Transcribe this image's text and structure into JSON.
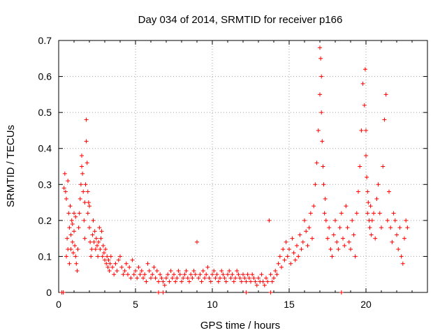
{
  "chart_data": {
    "type": "scatter",
    "title": "Day 034 of 2014, SRMTID for receiver p166",
    "xlabel": "GPS time / hours",
    "ylabel": "SRMTID / TECUs",
    "xlim": [
      0,
      24
    ],
    "ylim": [
      0,
      0.7
    ],
    "xticks": [
      0,
      5,
      10,
      15,
      20
    ],
    "yticks": [
      0,
      0.1,
      0.2,
      0.3,
      0.4,
      0.5,
      0.6,
      0.7
    ],
    "grid": true,
    "marker": "+",
    "series": [
      {
        "name": "SRMTID",
        "color": "#ff0000",
        "x": [
          0.2,
          0.3,
          0.35,
          0.4,
          0.45,
          0.5,
          0.5,
          0.55,
          0.6,
          0.6,
          0.65,
          0.7,
          0.7,
          0.75,
          0.8,
          0.8,
          0.85,
          0.9,
          0.9,
          0.95,
          1.0,
          1.0,
          1.05,
          1.1,
          1.1,
          1.15,
          1.2,
          1.25,
          1.3,
          1.35,
          1.4,
          1.45,
          1.5,
          1.5,
          1.55,
          1.6,
          1.65,
          1.7,
          1.7,
          1.75,
          1.8,
          1.8,
          1.85,
          1.9,
          1.9,
          1.95,
          2.0,
          2.0,
          2.05,
          2.1,
          2.15,
          2.2,
          2.25,
          2.3,
          2.35,
          2.4,
          2.45,
          2.5,
          2.55,
          2.6,
          2.65,
          2.7,
          2.75,
          2.8,
          2.85,
          2.9,
          2.95,
          3.0,
          3.05,
          3.1,
          3.15,
          3.2,
          3.25,
          3.3,
          3.35,
          3.4,
          3.5,
          3.6,
          3.7,
          3.8,
          3.9,
          4.0,
          4.1,
          4.2,
          4.3,
          4.4,
          4.5,
          4.6,
          4.7,
          4.8,
          4.9,
          5.0,
          5.1,
          5.2,
          5.3,
          5.4,
          5.5,
          5.6,
          5.7,
          5.8,
          5.9,
          6.0,
          6.1,
          6.2,
          6.3,
          6.4,
          6.5,
          6.6,
          6.7,
          6.8,
          6.9,
          7.0,
          7.1,
          7.2,
          7.3,
          7.4,
          7.5,
          7.6,
          7.7,
          7.8,
          7.9,
          8.0,
          8.1,
          8.2,
          8.3,
          8.4,
          8.5,
          8.6,
          8.7,
          8.8,
          8.9,
          9.0,
          9.1,
          9.2,
          9.3,
          9.4,
          9.5,
          9.6,
          9.7,
          9.8,
          9.9,
          10.0,
          10.1,
          10.2,
          10.3,
          10.4,
          10.5,
          10.6,
          10.7,
          10.8,
          10.9,
          11.0,
          11.1,
          11.2,
          11.3,
          11.4,
          11.5,
          11.6,
          11.7,
          11.8,
          11.9,
          12.0,
          12.1,
          12.2,
          12.3,
          12.4,
          12.5,
          12.6,
          12.7,
          12.8,
          12.9,
          13.0,
          13.1,
          13.2,
          13.3,
          13.4,
          13.5,
          13.6,
          13.7,
          13.8,
          13.9,
          14.0,
          14.1,
          14.2,
          14.3,
          14.4,
          14.5,
          14.6,
          14.7,
          14.8,
          14.9,
          15.0,
          15.1,
          15.2,
          15.3,
          15.4,
          15.5,
          15.6,
          15.7,
          15.8,
          15.9,
          16.0,
          16.1,
          16.2,
          16.3,
          16.4,
          16.5,
          16.6,
          16.7,
          16.8,
          16.9,
          17.0,
          17.0,
          17.05,
          17.1,
          17.1,
          17.15,
          17.2,
          17.25,
          17.3,
          17.35,
          17.4,
          17.5,
          17.6,
          17.7,
          17.8,
          17.9,
          18.0,
          18.1,
          18.2,
          18.3,
          18.4,
          18.5,
          18.6,
          18.7,
          18.8,
          18.9,
          19.0,
          19.1,
          19.2,
          19.3,
          19.4,
          19.5,
          19.6,
          19.7,
          19.8,
          19.9,
          19.95,
          20.0,
          20.0,
          20.05,
          20.1,
          20.1,
          20.15,
          20.2,
          20.25,
          20.3,
          20.35,
          20.4,
          20.5,
          20.6,
          20.7,
          20.8,
          20.9,
          21.0,
          21.1,
          21.2,
          21.3,
          21.4,
          21.5,
          21.6,
          21.7,
          21.8,
          21.9,
          22.0,
          22.1,
          22.2,
          22.3,
          22.4,
          22.5,
          22.6,
          22.7,
          6.5,
          6.8,
          13.8,
          18.4,
          12.2
        ],
        "y": [
          0.0,
          0.0,
          0.29,
          0.33,
          0.28,
          0.1,
          0.26,
          0.15,
          0.31,
          0.12,
          0.22,
          0.18,
          0.08,
          0.24,
          0.16,
          0.12,
          0.2,
          0.14,
          0.19,
          0.11,
          0.17,
          0.22,
          0.13,
          0.1,
          0.21,
          0.08,
          0.06,
          0.12,
          0.18,
          0.22,
          0.26,
          0.3,
          0.35,
          0.38,
          0.33,
          0.28,
          0.2,
          0.25,
          0.15,
          0.3,
          0.42,
          0.48,
          0.36,
          0.28,
          0.22,
          0.25,
          0.18,
          0.24,
          0.14,
          0.1,
          0.12,
          0.16,
          0.2,
          0.14,
          0.17,
          0.12,
          0.15,
          0.13,
          0.1,
          0.14,
          0.18,
          0.12,
          0.15,
          0.17,
          0.1,
          0.13,
          0.11,
          0.09,
          0.12,
          0.08,
          0.1,
          0.07,
          0.09,
          0.06,
          0.08,
          0.1,
          0.07,
          0.05,
          0.08,
          0.06,
          0.09,
          0.1,
          0.07,
          0.05,
          0.06,
          0.08,
          0.05,
          0.07,
          0.04,
          0.09,
          0.05,
          0.06,
          0.04,
          0.07,
          0.05,
          0.06,
          0.04,
          0.05,
          0.03,
          0.08,
          0.06,
          0.04,
          0.05,
          0.07,
          0.04,
          0.06,
          0.03,
          0.05,
          0.04,
          0.03,
          0.02,
          0.04,
          0.05,
          0.03,
          0.06,
          0.04,
          0.05,
          0.03,
          0.04,
          0.06,
          0.05,
          0.03,
          0.04,
          0.05,
          0.06,
          0.04,
          0.03,
          0.05,
          0.04,
          0.06,
          0.05,
          0.14,
          0.04,
          0.05,
          0.03,
          0.06,
          0.04,
          0.05,
          0.07,
          0.04,
          0.03,
          0.05,
          0.06,
          0.04,
          0.05,
          0.03,
          0.04,
          0.06,
          0.05,
          0.04,
          0.03,
          0.05,
          0.06,
          0.04,
          0.05,
          0.03,
          0.04,
          0.06,
          0.05,
          0.04,
          0.03,
          0.05,
          0.04,
          0.03,
          0.05,
          0.04,
          0.03,
          0.05,
          0.04,
          0.03,
          0.02,
          0.04,
          0.03,
          0.05,
          0.03,
          0.02,
          0.04,
          0.03,
          0.2,
          0.05,
          0.03,
          0.04,
          0.06,
          0.05,
          0.08,
          0.1,
          0.07,
          0.12,
          0.09,
          0.14,
          0.1,
          0.12,
          0.08,
          0.15,
          0.11,
          0.09,
          0.13,
          0.1,
          0.16,
          0.12,
          0.14,
          0.2,
          0.17,
          0.13,
          0.18,
          0.22,
          0.15,
          0.24,
          0.3,
          0.36,
          0.45,
          0.55,
          0.68,
          0.65,
          0.6,
          0.5,
          0.42,
          0.35,
          0.3,
          0.22,
          0.26,
          0.2,
          0.15,
          0.18,
          0.12,
          0.1,
          0.16,
          0.2,
          0.14,
          0.12,
          0.18,
          0.22,
          0.15,
          0.13,
          0.24,
          0.18,
          0.14,
          0.12,
          0.2,
          0.16,
          0.1,
          0.22,
          0.28,
          0.35,
          0.45,
          0.58,
          0.52,
          0.62,
          0.45,
          0.38,
          0.32,
          0.28,
          0.22,
          0.25,
          0.2,
          0.18,
          0.24,
          0.16,
          0.2,
          0.22,
          0.15,
          0.26,
          0.3,
          0.22,
          0.18,
          0.35,
          0.48,
          0.55,
          0.2,
          0.28,
          0.18,
          0.14,
          0.22,
          0.2,
          0.16,
          0.12,
          0.18,
          0.1,
          0.08,
          0.15,
          0.2,
          0.18,
          0.0,
          0.0,
          0.0,
          0.0,
          0.0
        ]
      }
    ]
  }
}
